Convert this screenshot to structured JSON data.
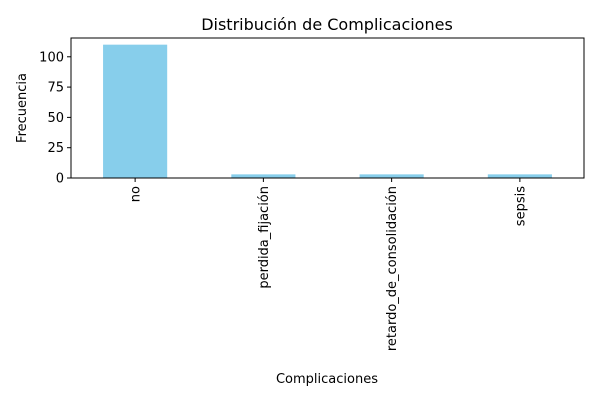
{
  "chart_data": {
    "type": "bar",
    "title": "Distribución de Complicaciones",
    "xlabel": "Complicaciones",
    "ylabel": "Frecuencia",
    "categories": [
      "no",
      "perdida_fijación",
      "retardo_de_consolidación",
      "sepsis"
    ],
    "values": [
      110,
      3,
      3,
      3
    ],
    "ylim": [
      0,
      115.5
    ],
    "yticks": [
      0,
      25,
      50,
      75,
      100
    ],
    "grid": false,
    "legend": false,
    "bar_color": "#87ceeb"
  }
}
